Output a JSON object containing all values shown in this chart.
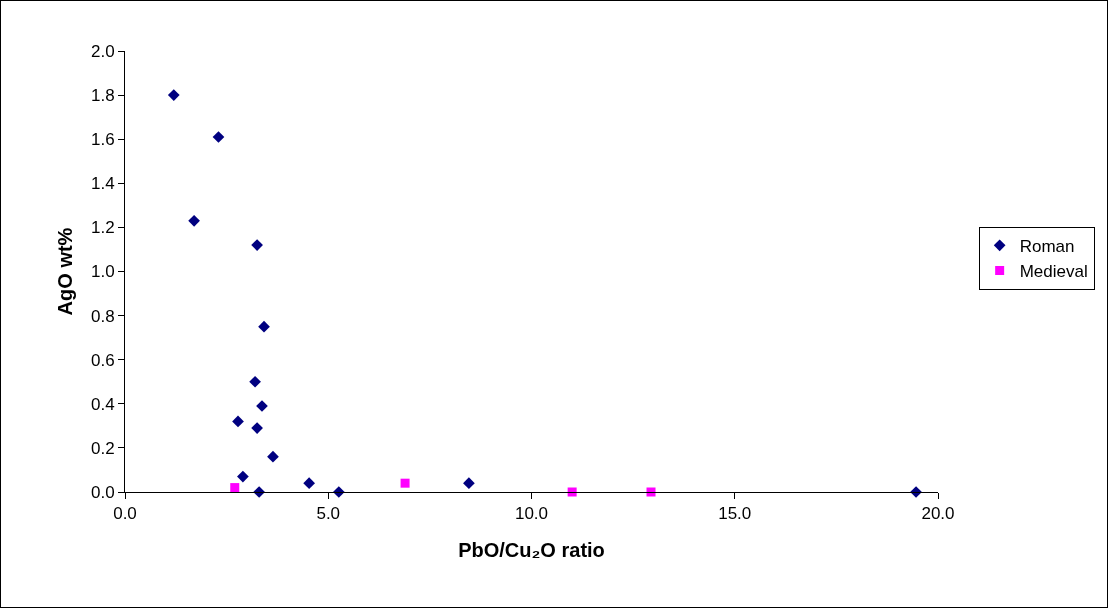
{
  "chart_data": {
    "type": "scatter",
    "xlabel": "PbO/Cu₂O ratio",
    "ylabel": "AgO wt%",
    "series": [
      {
        "name": "Roman",
        "color": "#000080",
        "marker": "diamond",
        "x": [
          1.2,
          2.3,
          1.7,
          3.25,
          3.42,
          3.2,
          3.37,
          2.78,
          3.25,
          3.64,
          2.9,
          3.3,
          4.53,
          5.26,
          8.46,
          19.46
        ],
        "values": [
          1.8,
          1.61,
          1.23,
          1.12,
          0.75,
          0.5,
          0.39,
          0.32,
          0.29,
          0.16,
          0.07,
          0.0,
          0.04,
          0.0,
          0.04,
          0.0
        ]
      },
      {
        "name": "Medieval",
        "color": "#ff00ff",
        "marker": "square",
        "x": [
          2.7,
          6.89,
          11.0,
          12.94
        ],
        "values": [
          0.02,
          0.04,
          0.0,
          0.0
        ]
      }
    ],
    "xlim": [
      0,
      20
    ],
    "xticks": [
      {
        "value": 0,
        "label": "0.0"
      },
      {
        "value": 5,
        "label": "5.0"
      },
      {
        "value": 10,
        "label": "10.0"
      },
      {
        "value": 15,
        "label": "15.0"
      },
      {
        "value": 20,
        "label": "20.0"
      }
    ],
    "ylim": [
      0,
      2
    ],
    "yticks": [
      {
        "value": 0,
        "label": "0.0"
      },
      {
        "value": 0.2,
        "label": "0.2"
      },
      {
        "value": 0.4,
        "label": "0.4"
      },
      {
        "value": 0.6,
        "label": "0.6"
      },
      {
        "value": 0.8,
        "label": "0.8"
      },
      {
        "value": 1.0,
        "label": "1.0"
      },
      {
        "value": 1.2,
        "label": "1.2"
      },
      {
        "value": 1.4,
        "label": "1.4"
      },
      {
        "value": 1.6,
        "label": "1.6"
      },
      {
        "value": 1.8,
        "label": "1.8"
      },
      {
        "value": 2.0,
        "label": "2.0"
      }
    ],
    "grid": false,
    "legend": "right"
  }
}
